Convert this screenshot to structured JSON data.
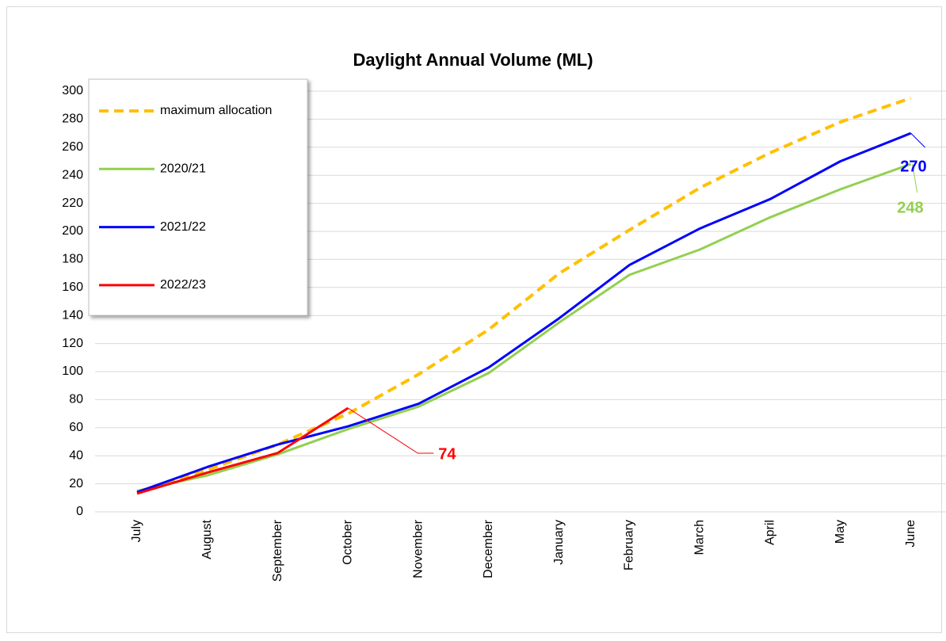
{
  "chart_data": {
    "type": "line",
    "title": "Daylight Annual Volume (ML)",
    "categories": [
      "July",
      "August",
      "September",
      "October",
      "November",
      "December",
      "January",
      "February",
      "March",
      "April",
      "May",
      "June"
    ],
    "series": [
      {
        "name": "maximum allocation",
        "color": "#FFC000",
        "dashed": true,
        "values": [
          14,
          30,
          48,
          70,
          98,
          130,
          170,
          201,
          231,
          256,
          278,
          295
        ]
      },
      {
        "name": "2020/21",
        "color": "#92D050",
        "values": [
          15,
          26,
          41,
          59,
          75,
          99,
          135,
          169,
          187,
          210,
          230,
          248
        ]
      },
      {
        "name": "2021/22",
        "color": "#0000FF",
        "values": [
          14,
          32,
          48,
          61,
          77,
          103,
          138,
          176,
          202,
          223,
          250,
          270
        ]
      },
      {
        "name": "2022/23",
        "color": "#FF0000",
        "values": [
          13,
          28,
          42,
          74,
          null,
          null,
          null,
          null,
          null,
          null,
          null,
          null
        ]
      }
    ],
    "ylim": [
      0,
      300
    ],
    "yticks": [
      0,
      20,
      40,
      60,
      80,
      100,
      120,
      140,
      160,
      180,
      200,
      220,
      240,
      260,
      280,
      300
    ],
    "grid": true,
    "legend": "upper left"
  }
}
